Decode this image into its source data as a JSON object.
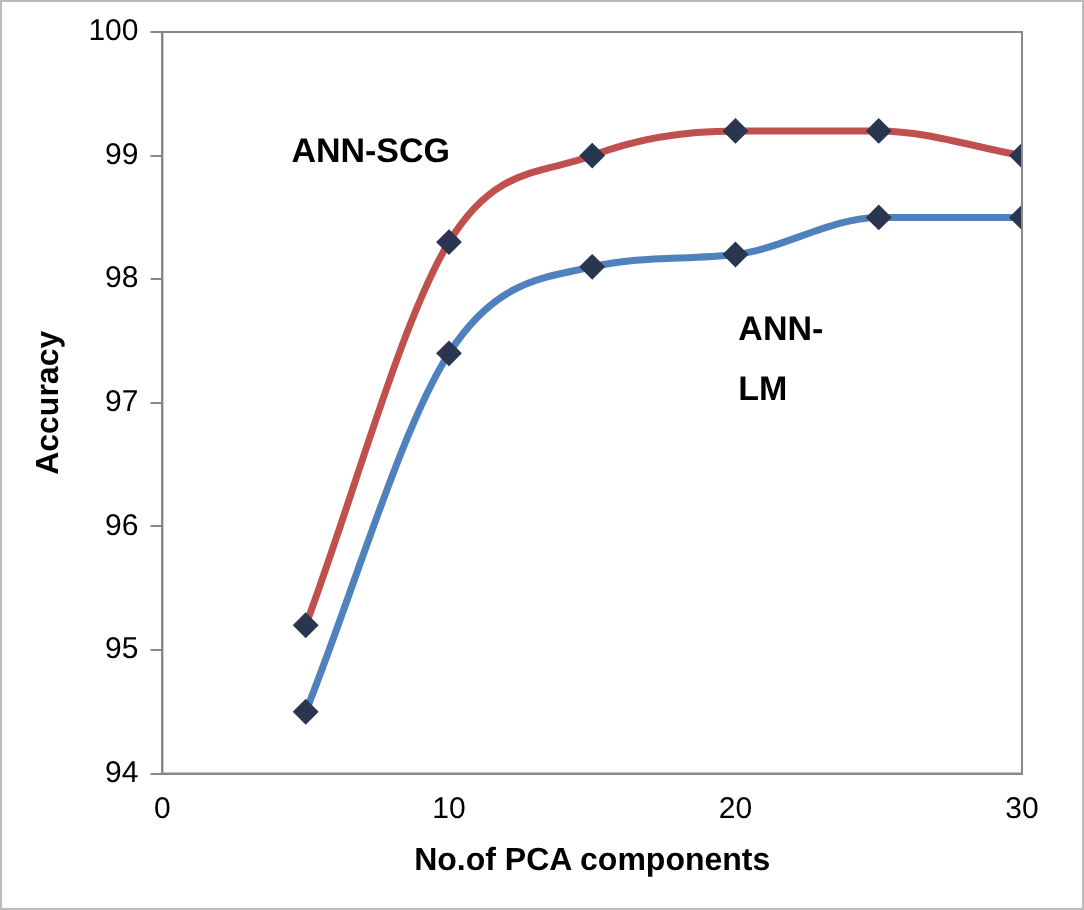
{
  "chart_data": {
    "type": "line",
    "xlabel": "No.of PCA components",
    "ylabel": "Accuracy",
    "x": [
      5,
      10,
      15,
      20,
      25,
      30
    ],
    "series": [
      {
        "name": "ANN-SCG",
        "color": "#c0504d",
        "values": [
          95.2,
          98.3,
          99.0,
          99.2,
          99.2,
          99.0
        ]
      },
      {
        "name": "ANN-LM",
        "color": "#4f81bd",
        "values": [
          94.5,
          97.4,
          98.1,
          98.2,
          98.5,
          98.5
        ]
      }
    ],
    "xlim": [
      0,
      30
    ],
    "xticks": [
      0,
      10,
      20,
      30
    ],
    "ylim": [
      94,
      100
    ],
    "yticks": [
      94,
      95,
      96,
      97,
      98,
      99,
      100
    ],
    "grid": false,
    "legend": false,
    "marker": "diamond",
    "line_style": "solid"
  }
}
